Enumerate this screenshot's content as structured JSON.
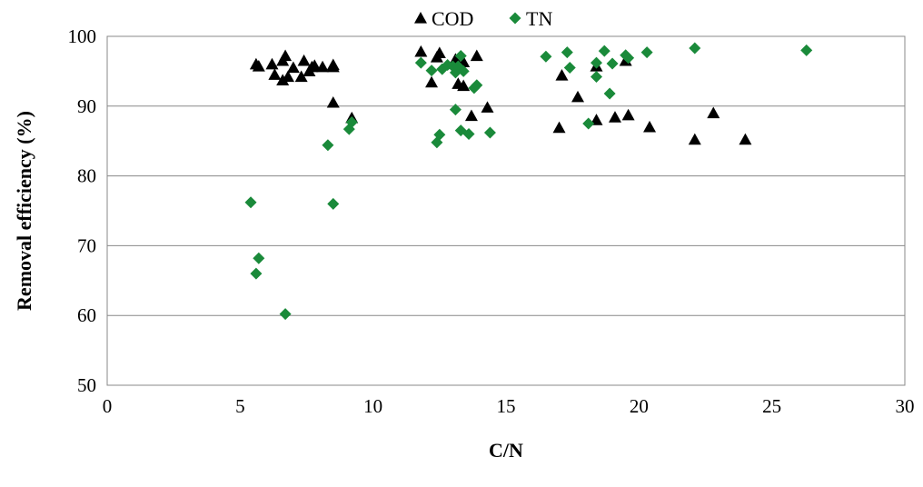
{
  "chart_data": {
    "type": "scatter",
    "title": "",
    "xlabel": "C/N",
    "ylabel": "Removal efficiency (%)",
    "xlim": [
      0,
      30
    ],
    "ylim": [
      50,
      100
    ],
    "x_ticks": [
      "0",
      "5",
      "10",
      "15",
      "20",
      "25",
      "30"
    ],
    "y_ticks": [
      "50",
      "60",
      "70",
      "80",
      "90",
      "100"
    ],
    "grid": "horizontal",
    "legend_position": "top-center",
    "series": [
      {
        "name": "COD",
        "marker": "triangle",
        "color": "#000000",
        "points": [
          [
            5.6,
            96.0
          ],
          [
            5.7,
            95.7
          ],
          [
            6.2,
            96.0
          ],
          [
            6.3,
            94.5
          ],
          [
            6.6,
            96.5
          ],
          [
            6.6,
            93.7
          ],
          [
            6.7,
            97.2
          ],
          [
            6.8,
            94.2
          ],
          [
            7.0,
            95.5
          ],
          [
            7.3,
            94.2
          ],
          [
            7.4,
            96.5
          ],
          [
            7.6,
            95.0
          ],
          [
            7.7,
            95.6
          ],
          [
            7.8,
            95.8
          ],
          [
            8.1,
            95.6
          ],
          [
            8.5,
            95.6
          ],
          [
            8.5,
            95.9
          ],
          [
            8.5,
            90.5
          ],
          [
            9.2,
            88.3
          ],
          [
            11.8,
            97.8
          ],
          [
            12.2,
            93.4
          ],
          [
            12.4,
            97.0
          ],
          [
            12.5,
            97.6
          ],
          [
            13.1,
            96.7
          ],
          [
            13.2,
            93.2
          ],
          [
            13.4,
            92.9
          ],
          [
            13.4,
            96.3
          ],
          [
            13.7,
            88.6
          ],
          [
            13.9,
            97.2
          ],
          [
            14.3,
            89.8
          ],
          [
            17.1,
            94.4
          ],
          [
            17.0,
            86.9
          ],
          [
            17.7,
            91.3
          ],
          [
            18.4,
            95.7
          ],
          [
            18.4,
            88.0
          ],
          [
            19.1,
            88.4
          ],
          [
            19.5,
            96.5
          ],
          [
            19.6,
            88.7
          ],
          [
            20.4,
            87.0
          ],
          [
            22.1,
            85.2
          ],
          [
            22.8,
            89.0
          ],
          [
            24.0,
            85.2
          ]
        ]
      },
      {
        "name": "TN",
        "marker": "diamond",
        "color": "#1a8a3a",
        "points": [
          [
            5.4,
            76.2
          ],
          [
            5.6,
            66.0
          ],
          [
            5.7,
            68.2
          ],
          [
            6.7,
            60.2
          ],
          [
            8.3,
            84.4
          ],
          [
            8.5,
            76.0
          ],
          [
            9.1,
            86.7
          ],
          [
            9.2,
            87.7
          ],
          [
            11.8,
            96.2
          ],
          [
            12.2,
            95.1
          ],
          [
            12.4,
            84.8
          ],
          [
            12.5,
            85.9
          ],
          [
            12.6,
            95.3
          ],
          [
            12.8,
            95.9
          ],
          [
            13.0,
            95.7
          ],
          [
            13.1,
            94.8
          ],
          [
            13.1,
            89.5
          ],
          [
            13.2,
            95.7
          ],
          [
            13.3,
            97.2
          ],
          [
            13.3,
            86.5
          ],
          [
            13.4,
            95.0
          ],
          [
            13.6,
            86.0
          ],
          [
            13.8,
            92.6
          ],
          [
            13.9,
            93.0
          ],
          [
            14.4,
            86.2
          ],
          [
            16.5,
            97.1
          ],
          [
            17.3,
            97.7
          ],
          [
            17.4,
            95.5
          ],
          [
            18.1,
            87.5
          ],
          [
            18.4,
            96.2
          ],
          [
            18.4,
            94.2
          ],
          [
            18.7,
            97.9
          ],
          [
            18.9,
            91.8
          ],
          [
            19.0,
            96.1
          ],
          [
            19.5,
            97.3
          ],
          [
            19.6,
            96.9
          ],
          [
            20.3,
            97.7
          ],
          [
            22.1,
            98.3
          ],
          [
            26.3,
            98.0
          ]
        ]
      }
    ]
  }
}
